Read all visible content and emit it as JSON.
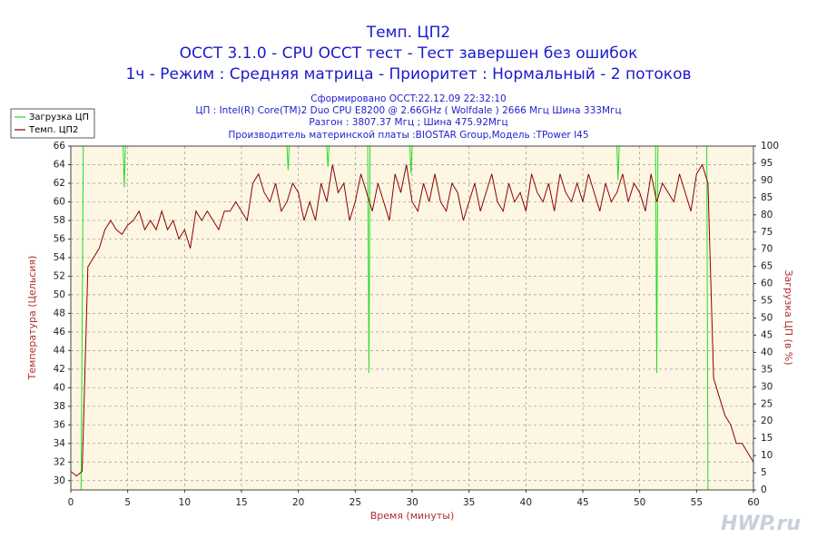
{
  "chart_data": {
    "type": "line",
    "title": "Темп. ЦП2",
    "subtitles": [
      "OCCT 3.1.0 - CPU OCCT тест - Тест завершен без ошибок",
      "1ч - Режим : Средняя матрица - Приоритет : Нормальный - 2 потоков"
    ],
    "info": [
      "Сформировано OCCT:22.12.09 22:32:10",
      "ЦП : Intel(R) Core(TM)2 Duo CPU E8200 @ 2.66GHz ( Wolfdale ) 2666 Мгц Шина 333Мгц",
      "Разгон : 3807.37 Мгц ; Шина 475.92Мгц",
      "Производитель материнской платы :BIOSTAR Group,Модель :TPower I45"
    ],
    "xlabel": "Время (минуты)",
    "ylabel": "Температура (Цельсия)",
    "y2label": "Загрузка ЦП (в %)",
    "watermark": "HWP.ru",
    "xlim": [
      0,
      60
    ],
    "xticks": [
      0,
      5,
      10,
      15,
      20,
      25,
      30,
      35,
      40,
      45,
      50,
      55,
      60
    ],
    "ylim": [
      29,
      66
    ],
    "yticks": [
      30,
      32,
      34,
      36,
      38,
      40,
      42,
      44,
      46,
      48,
      50,
      52,
      54,
      56,
      58,
      60,
      62,
      64,
      66
    ],
    "y2lim": [
      0,
      100
    ],
    "y2ticks": [
      0,
      5,
      10,
      15,
      20,
      25,
      30,
      35,
      40,
      45,
      50,
      55,
      60,
      65,
      70,
      75,
      80,
      85,
      90,
      95,
      100
    ],
    "grid": true,
    "legend": "top-left",
    "series": [
      {
        "name": "Загрузка ЦП",
        "color": "#22dd22",
        "axis": "y2",
        "x": [
          0,
          0.9,
          1.0,
          1.1,
          4.6,
          4.7,
          4.8,
          19.0,
          19.1,
          19.2,
          22.5,
          22.6,
          22.7,
          26.1,
          26.2,
          26.3,
          29.8,
          29.9,
          30.0,
          48.0,
          48.1,
          48.2,
          51.4,
          51.5,
          51.6,
          55.9,
          56.0,
          60
        ],
        "values": [
          0,
          0,
          50,
          100,
          100,
          88,
          100,
          100,
          93,
          100,
          100,
          94,
          100,
          100,
          34,
          100,
          100,
          92,
          100,
          100,
          90,
          100,
          100,
          34,
          100,
          100,
          0,
          0
        ]
      },
      {
        "name": "Темп. ЦП2",
        "color": "#8b0000",
        "axis": "y",
        "x": [
          0,
          0.5,
          1,
          1.5,
          2,
          2.5,
          3,
          3.5,
          4,
          4.5,
          5,
          5.5,
          6,
          6.5,
          7,
          7.5,
          8,
          8.5,
          9,
          9.5,
          10,
          10.5,
          11,
          11.5,
          12,
          12.5,
          13,
          13.5,
          14,
          14.5,
          15,
          15.5,
          16,
          16.5,
          17,
          17.5,
          18,
          18.5,
          19,
          19.5,
          20,
          20.5,
          21,
          21.5,
          22,
          22.5,
          23,
          23.5,
          24,
          24.5,
          25,
          25.5,
          26,
          26.5,
          27,
          27.5,
          28,
          28.5,
          29,
          29.5,
          30,
          30.5,
          31,
          31.5,
          32,
          32.5,
          33,
          33.5,
          34,
          34.5,
          35,
          35.5,
          36,
          36.5,
          37,
          37.5,
          38,
          38.5,
          39,
          39.5,
          40,
          40.5,
          41,
          41.5,
          42,
          42.5,
          43,
          43.5,
          44,
          44.5,
          45,
          45.5,
          46,
          46.5,
          47,
          47.5,
          48,
          48.5,
          49,
          49.5,
          50,
          50.5,
          51,
          51.5,
          52,
          52.5,
          53,
          53.5,
          54,
          54.5,
          55,
          55.5,
          56,
          56.5,
          57,
          57.5,
          58,
          58.5,
          59,
          59.5,
          60
        ],
        "values": [
          31,
          30.5,
          31,
          53,
          54,
          55,
          57,
          58,
          57,
          56.5,
          57.5,
          58,
          59,
          57,
          58,
          57,
          59,
          57,
          58,
          56,
          57,
          55,
          59,
          58,
          59,
          58,
          57,
          59,
          59,
          60,
          59,
          58,
          62,
          63,
          61,
          60,
          62,
          59,
          60,
          62,
          61,
          58,
          60,
          58,
          62,
          60,
          64,
          61,
          62,
          58,
          60,
          63,
          61,
          59,
          62,
          60,
          58,
          63,
          61,
          64,
          60,
          59,
          62,
          60,
          63,
          60,
          59,
          62,
          61,
          58,
          60,
          62,
          59,
          61,
          63,
          60,
          59,
          62,
          60,
          61,
          59,
          63,
          61,
          60,
          62,
          59,
          63,
          61,
          60,
          62,
          60,
          63,
          61,
          59,
          62,
          60,
          61,
          63,
          60,
          62,
          61,
          59,
          63,
          60,
          62,
          61,
          60,
          63,
          61,
          59,
          63,
          64,
          62,
          41,
          39,
          37,
          36,
          34,
          34,
          33,
          32
        ]
      }
    ]
  }
}
